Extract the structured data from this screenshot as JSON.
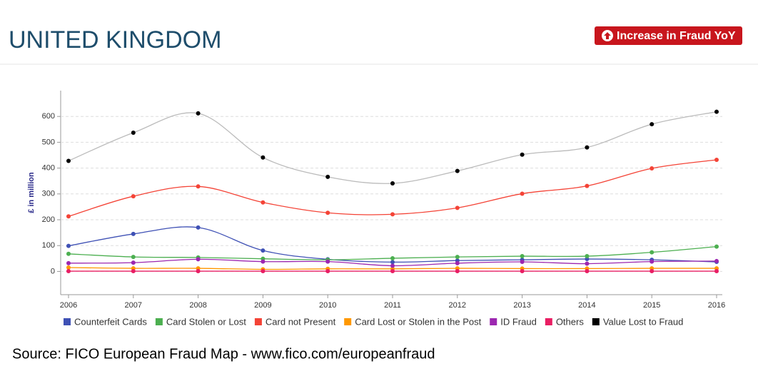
{
  "header": {
    "title": "UNITED KINGDOM",
    "button": "Increase in Fraud YoY"
  },
  "chart_data": {
    "type": "line",
    "y_label": "£ in million",
    "x": [
      2006,
      2007,
      2008,
      2009,
      2010,
      2011,
      2012,
      2013,
      2014,
      2015,
      2016
    ],
    "xlim": [
      2006,
      2016
    ],
    "xticks": [
      2006,
      2007,
      2008,
      2009,
      2010,
      2011,
      2012,
      2013,
      2014,
      2015,
      2016
    ],
    "ylim": [
      -90,
      700
    ],
    "yticks": [
      0,
      100,
      200,
      300,
      400,
      500,
      600
    ],
    "grid": true,
    "smooth": true,
    "series": [
      {
        "name": "Counterfeit Cards",
        "color": "#3f51b5",
        "values": [
          99,
          145,
          170,
          81,
          47,
          36,
          42,
          45,
          48,
          45,
          37
        ]
      },
      {
        "name": "Card Stolen or Lost",
        "color": "#4caf50",
        "values": [
          68,
          56,
          54,
          49,
          45,
          51,
          56,
          59,
          59,
          74,
          96
        ]
      },
      {
        "name": "Card not Present",
        "color": "#f44336",
        "values": [
          213,
          291,
          329,
          267,
          227,
          221,
          246,
          301,
          331,
          399,
          432
        ]
      },
      {
        "name": "Card Lost or Stolen in the Post",
        "color": "#ff9800",
        "values": [
          15,
          12,
          12,
          8,
          10,
          10,
          12,
          11,
          11,
          12,
          12
        ]
      },
      {
        "name": "ID Fraud",
        "color": "#9c27b0",
        "values": [
          32,
          34,
          47,
          38,
          38,
          22,
          32,
          37,
          30,
          38,
          40
        ]
      },
      {
        "name": "Others",
        "color": "#e91e63",
        "values": [
          1,
          1,
          1,
          1,
          1,
          1,
          1,
          1,
          1,
          1,
          1
        ]
      },
      {
        "name": "Value Lost to Fraud",
        "color": "#000000",
        "line_color": "#bbbbbb",
        "values": [
          428,
          537,
          612,
          441,
          366,
          341,
          389,
          452,
          480,
          570,
          618
        ]
      }
    ]
  },
  "source": "Source: FICO European Fraud Map - www.fico.com/europeanfraud"
}
